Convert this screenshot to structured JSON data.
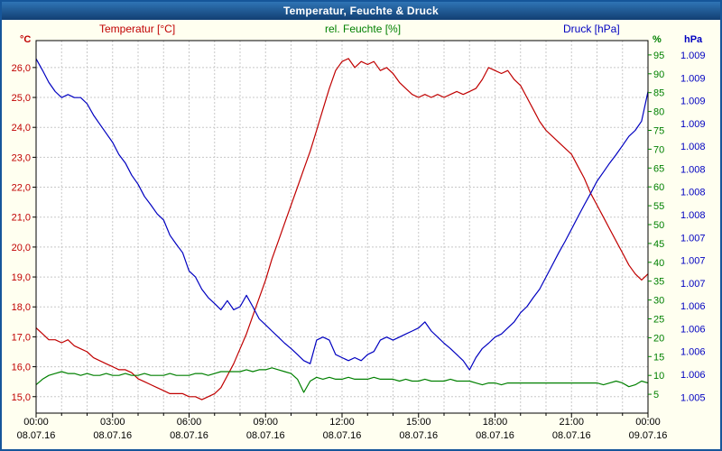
{
  "window": {
    "title": "Temperatur, Feuchte & Druck"
  },
  "legend": {
    "temp": "Temperatur [°C]",
    "humidity": "rel. Feuchte [%]",
    "pressure": "Druck [hPa]"
  },
  "axis_units": {
    "temp": "°C",
    "humidity": "%",
    "pressure": "hPa"
  },
  "colors": {
    "temp": "#c00000",
    "humidity": "#008000",
    "pressure": "#0000c0",
    "grid": "#c8c8c8",
    "plot_background": "#ffffff",
    "window_background": "#fffff0",
    "titlebar": "#1a4f8a",
    "axis_text": "#000000"
  },
  "chart_data": {
    "type": "line",
    "title": "Temperatur, Feuchte & Druck",
    "grid": true,
    "legend_position": "top",
    "x": {
      "interval_minutes": 15,
      "start": "00:00",
      "end": "00:00",
      "tick_times": [
        "00:00",
        "03:00",
        "06:00",
        "09:00",
        "12:00",
        "15:00",
        "18:00",
        "21:00",
        "00:00"
      ],
      "tick_dates": [
        "08.07.16",
        "08.07.16",
        "08.07.16",
        "08.07.16",
        "08.07.16",
        "08.07.16",
        "08.07.16",
        "08.07.16",
        "09.07.16"
      ]
    },
    "axes": {
      "temp": {
        "unit": "°C",
        "min": 14.45,
        "max": 26.9,
        "ticks": [
          26,
          25,
          24,
          23,
          22,
          21,
          20,
          19,
          18,
          17,
          16,
          15
        ],
        "tick_labels": [
          "26,0",
          "25,0",
          "24,0",
          "23,0",
          "22,0",
          "21,0",
          "20,0",
          "19,0",
          "18,0",
          "17,0",
          "16,0",
          "15,0"
        ]
      },
      "humidity": {
        "unit": "%",
        "min": 0,
        "max": 98.8,
        "ticks": [
          95,
          90,
          85,
          80,
          75,
          70,
          65,
          60,
          55,
          50,
          45,
          40,
          35,
          30,
          25,
          20,
          15,
          10,
          5
        ]
      },
      "pressure": {
        "unit": "hPa",
        "min": 1.00459,
        "max": 1.00949,
        "tick_values": [
          1.0093,
          1.009,
          1.0087,
          1.0084,
          1.0081,
          1.0078,
          1.0075,
          1.0072,
          1.0069,
          1.0066,
          1.0063,
          1.006,
          1.0057,
          1.0054,
          1.0051,
          1.0048
        ],
        "tick_labels": [
          "1.009",
          "1.009",
          "1.009",
          "1.009",
          "1.008",
          "1.008",
          "1.008",
          "1.008",
          "1.007",
          "1.007",
          "1.007",
          "1.006",
          "1.006",
          "1.006",
          "1.006",
          "1.005"
        ]
      }
    },
    "series": [
      {
        "name": "Temperatur [°C]",
        "axis": "temp",
        "color": "#c00000",
        "values": [
          17.3,
          17.1,
          16.9,
          16.9,
          16.8,
          16.9,
          16.7,
          16.6,
          16.5,
          16.3,
          16.2,
          16.1,
          16.0,
          15.9,
          15.9,
          15.8,
          15.6,
          15.5,
          15.4,
          15.3,
          15.2,
          15.1,
          15.1,
          15.1,
          15.0,
          15.0,
          14.9,
          15.0,
          15.1,
          15.3,
          15.7,
          16.1,
          16.6,
          17.1,
          17.7,
          18.3,
          18.9,
          19.6,
          20.2,
          20.8,
          21.4,
          22.0,
          22.6,
          23.2,
          23.9,
          24.6,
          25.3,
          25.9,
          26.2,
          26.3,
          26.0,
          26.2,
          26.1,
          26.2,
          25.9,
          26.0,
          25.8,
          25.5,
          25.3,
          25.1,
          25.0,
          25.1,
          25.0,
          25.1,
          25.0,
          25.1,
          25.2,
          25.1,
          25.2,
          25.3,
          25.6,
          26.0,
          25.9,
          25.8,
          25.9,
          25.6,
          25.4,
          25.0,
          24.6,
          24.2,
          23.9,
          23.7,
          23.5,
          23.3,
          23.1,
          22.7,
          22.3,
          21.8,
          21.4,
          21.0,
          20.6,
          20.2,
          19.8,
          19.4,
          19.1,
          18.9,
          19.1
        ]
      },
      {
        "name": "rel. Feuchte [%]",
        "axis": "humidity",
        "color": "#008000",
        "values": [
          7.5,
          9.0,
          10.0,
          10.5,
          11.0,
          10.5,
          10.5,
          10.0,
          10.5,
          10.0,
          10.0,
          10.5,
          10.0,
          10.0,
          10.5,
          10.0,
          10.0,
          10.5,
          10.0,
          10.0,
          10.0,
          10.5,
          10.0,
          10.0,
          10.0,
          10.5,
          10.5,
          10.0,
          10.5,
          11.0,
          11.0,
          11.0,
          11.0,
          11.5,
          11.0,
          11.5,
          11.5,
          12.0,
          11.5,
          11.0,
          10.5,
          9.0,
          5.5,
          8.5,
          9.5,
          9.0,
          9.5,
          9.0,
          9.0,
          9.5,
          9.0,
          9.0,
          9.0,
          9.5,
          9.0,
          9.0,
          9.0,
          8.5,
          9.0,
          8.5,
          8.5,
          9.0,
          8.5,
          8.5,
          8.5,
          9.0,
          8.5,
          8.5,
          8.5,
          8.0,
          7.5,
          8.0,
          8.0,
          7.5,
          8.0,
          8.0,
          8.0,
          8.0,
          8.0,
          8.0,
          8.0,
          8.0,
          8.0,
          8.0,
          8.0,
          8.0,
          8.0,
          8.0,
          8.0,
          7.5,
          8.0,
          8.5,
          8.0,
          7.0,
          7.5,
          8.5,
          8.0
        ]
      },
      {
        "name": "Druck [hPa]",
        "axis": "pressure",
        "color": "#0000c0",
        "values": [
          1.00925,
          1.0091,
          1.00894,
          1.00882,
          1.00874,
          1.00878,
          1.00874,
          1.00874,
          1.00866,
          1.00851,
          1.00839,
          1.00827,
          1.00815,
          1.00799,
          1.00788,
          1.00772,
          1.0076,
          1.00744,
          1.00733,
          1.00721,
          1.00713,
          1.00693,
          1.00681,
          1.0067,
          1.00646,
          1.00638,
          1.00622,
          1.00611,
          1.00603,
          1.00595,
          1.00607,
          1.00595,
          1.00599,
          1.00614,
          1.00599,
          1.00583,
          1.00575,
          1.00567,
          1.00559,
          1.00551,
          1.00544,
          1.00536,
          1.00528,
          1.00524,
          1.00555,
          1.00559,
          1.00555,
          1.00536,
          1.00532,
          1.00528,
          1.00532,
          1.00528,
          1.00536,
          1.0054,
          1.00555,
          1.00559,
          1.00555,
          1.00559,
          1.00563,
          1.00567,
          1.00571,
          1.00579,
          1.00567,
          1.00559,
          1.00551,
          1.00544,
          1.00536,
          1.00528,
          1.00516,
          1.00532,
          1.00544,
          1.00551,
          1.00559,
          1.00563,
          1.00571,
          1.00579,
          1.00591,
          1.00599,
          1.00611,
          1.00622,
          1.00638,
          1.00654,
          1.0067,
          1.00685,
          1.00701,
          1.00717,
          1.00733,
          1.00748,
          1.00764,
          1.00776,
          1.00788,
          1.00799,
          1.00811,
          1.00823,
          1.00831,
          1.00843,
          1.00882
        ]
      }
    ]
  }
}
